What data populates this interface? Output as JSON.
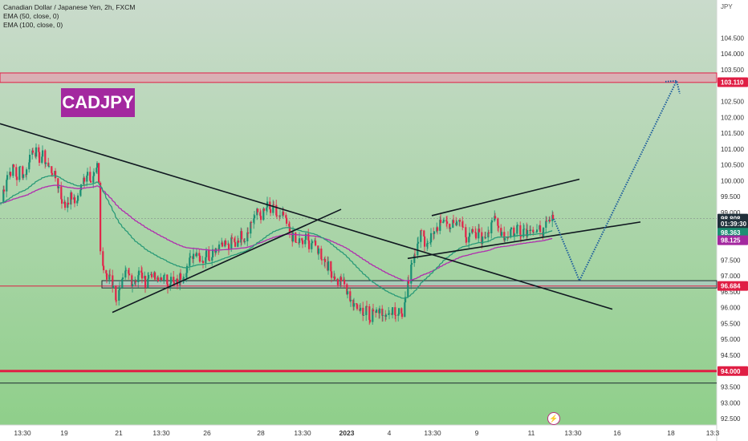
{
  "legend": {
    "title": "Canadian Dollar / Japanese Yen, 2h, FXCM",
    "ema1": "EMA (50, close, 0)",
    "ema2": "EMA (100, close, 0)"
  },
  "symbol_badge": "CADJPY",
  "flash_icon": "lightning-icon",
  "colors": {
    "bg_top": "#cadbcc",
    "bg_bottom": "#8fcf8a",
    "up_candle": "#1b8f73",
    "down_candle": "#e0264a",
    "ema50": "#2a9a78",
    "ema100": "#b02cae",
    "level_red": "#e01e44",
    "arrow": "#1c5c9c",
    "badge": "#a3289f"
  },
  "chart_data": {
    "type": "candlestick",
    "currency": "JPY",
    "ylim": [
      92.3,
      105.7
    ],
    "y_ticks": [
      "104.500",
      "104.000",
      "103.500",
      "102.500",
      "102.000",
      "101.500",
      "101.000",
      "100.500",
      "100.000",
      "99.500",
      "99.000",
      "97.500",
      "97.000",
      "96.500",
      "96.000",
      "95.500",
      "95.000",
      "94.500",
      "93.500",
      "93.000",
      "92.500"
    ],
    "x_ticks": [
      "13:30",
      "19",
      "21",
      "13:30",
      "26",
      "28",
      "13:30",
      "2023",
      "4",
      "13:30",
      "9",
      "11",
      "13:30",
      "16",
      "18",
      "13:3"
    ],
    "price_labels": [
      {
        "text": "103.110",
        "value": 103.11,
        "bg": "#e01e44"
      },
      {
        "text": "98.808",
        "value": 98.808,
        "bg": "#20303a"
      },
      {
        "text": "01:39:30",
        "value": 98.64,
        "bg": "#20303a"
      },
      {
        "text": "98.363",
        "value": 98.363,
        "bg": "#1b8f73"
      },
      {
        "text": "98.125",
        "value": 98.125,
        "bg": "#a3289f"
      },
      {
        "text": "96.684",
        "value": 96.684,
        "bg": "#e01e44"
      },
      {
        "text": "94.000",
        "value": 94.0,
        "bg": "#e01e44"
      }
    ],
    "current_price": 98.808,
    "resistance_zone": [
      103.1,
      103.4
    ],
    "support_zone": [
      96.62,
      96.85
    ],
    "lower_level": 94.0,
    "bottom_line": 93.62,
    "close_path": [
      [
        0,
        99.3
      ],
      [
        4,
        99.8
      ],
      [
        8,
        100.2
      ],
      [
        12,
        100.3
      ],
      [
        16,
        100.4
      ],
      [
        20,
        100.1
      ],
      [
        24,
        100.4
      ],
      [
        28,
        100.2
      ],
      [
        32,
        100.3
      ],
      [
        36,
        100.8
      ],
      [
        40,
        101.0
      ],
      [
        44,
        100.9
      ],
      [
        48,
        100.7
      ],
      [
        52,
        100.8
      ],
      [
        56,
        100.6
      ],
      [
        60,
        100.4
      ],
      [
        64,
        100.3
      ],
      [
        68,
        100.1
      ],
      [
        72,
        99.8
      ],
      [
        76,
        99.4
      ],
      [
        80,
        99.2
      ],
      [
        84,
        99.4
      ],
      [
        88,
        99.5
      ],
      [
        92,
        99.3
      ],
      [
        96,
        99.5
      ],
      [
        100,
        99.8
      ],
      [
        104,
        100.1
      ],
      [
        108,
        100.3
      ],
      [
        112,
        100.1
      ],
      [
        116,
        100.2
      ],
      [
        120,
        100.4
      ],
      [
        122,
        100.0
      ],
      [
        124,
        97.8
      ],
      [
        128,
        97.2
      ],
      [
        132,
        96.9
      ],
      [
        136,
        97.1
      ],
      [
        140,
        96.6
      ],
      [
        144,
        96.3
      ],
      [
        148,
        96.5
      ],
      [
        152,
        96.8
      ],
      [
        156,
        97.1
      ],
      [
        160,
        97.0
      ],
      [
        164,
        96.8
      ],
      [
        168,
        96.9
      ],
      [
        172,
        97.1
      ],
      [
        176,
        97.0
      ],
      [
        180,
        96.8
      ],
      [
        184,
        97.0
      ],
      [
        188,
        97.1
      ],
      [
        192,
        96.9
      ],
      [
        196,
        96.8
      ],
      [
        200,
        97.0
      ],
      [
        204,
        96.9
      ],
      [
        208,
        96.8
      ],
      [
        212,
        96.9
      ],
      [
        216,
        96.7
      ],
      [
        220,
        96.8
      ],
      [
        224,
        97.0
      ],
      [
        228,
        97.1
      ],
      [
        232,
        97.3
      ],
      [
        236,
        97.5
      ],
      [
        240,
        97.7
      ],
      [
        244,
        97.8
      ],
      [
        248,
        97.6
      ],
      [
        252,
        97.5
      ],
      [
        256,
        97.7
      ],
      [
        260,
        97.6
      ],
      [
        264,
        97.8
      ],
      [
        268,
        97.9
      ],
      [
        272,
        98.0
      ],
      [
        276,
        98.1
      ],
      [
        280,
        98.0
      ],
      [
        284,
        97.9
      ],
      [
        288,
        98.1
      ],
      [
        292,
        98.0
      ],
      [
        296,
        98.2
      ],
      [
        300,
        98.3
      ],
      [
        304,
        98.2
      ],
      [
        308,
        98.5
      ],
      [
        312,
        98.7
      ],
      [
        316,
        98.9
      ],
      [
        320,
        99.0
      ],
      [
        324,
        98.9
      ],
      [
        328,
        99.0
      ],
      [
        332,
        99.2
      ],
      [
        336,
        99.0
      ],
      [
        340,
        99.1
      ],
      [
        344,
        98.9
      ],
      [
        348,
        98.8
      ],
      [
        352,
        98.9
      ],
      [
        356,
        98.6
      ],
      [
        360,
        98.4
      ],
      [
        364,
        98.2
      ],
      [
        368,
        98.0
      ],
      [
        372,
        98.1
      ],
      [
        376,
        98.0
      ],
      [
        380,
        98.2
      ],
      [
        384,
        98.0
      ],
      [
        388,
        98.1
      ],
      [
        392,
        97.9
      ],
      [
        396,
        97.8
      ],
      [
        400,
        97.6
      ],
      [
        404,
        97.5
      ],
      [
        408,
        97.3
      ],
      [
        412,
        97.1
      ],
      [
        416,
        97.0
      ],
      [
        420,
        96.8
      ],
      [
        424,
        96.9
      ],
      [
        428,
        96.7
      ],
      [
        432,
        96.4
      ],
      [
        436,
        96.3
      ],
      [
        440,
        96.0
      ],
      [
        444,
        96.1
      ],
      [
        448,
        96.0
      ],
      [
        452,
        95.8
      ],
      [
        456,
        96.1
      ],
      [
        460,
        95.7
      ],
      [
        464,
        95.9
      ],
      [
        468,
        95.8
      ],
      [
        472,
        96.0
      ],
      [
        476,
        95.8
      ],
      [
        480,
        95.9
      ],
      [
        484,
        95.7
      ],
      [
        488,
        96.0
      ],
      [
        492,
        95.8
      ],
      [
        496,
        95.9
      ],
      [
        500,
        95.8
      ],
      [
        504,
        96.2
      ],
      [
        508,
        96.8
      ],
      [
        512,
        97.3
      ],
      [
        516,
        97.8
      ],
      [
        520,
        98.2
      ],
      [
        524,
        98.4
      ],
      [
        528,
        98.0
      ],
      [
        532,
        98.1
      ],
      [
        536,
        98.2
      ],
      [
        540,
        98.3
      ],
      [
        544,
        98.5
      ],
      [
        548,
        98.8
      ],
      [
        552,
        98.6
      ],
      [
        556,
        98.7
      ],
      [
        560,
        98.5
      ],
      [
        564,
        98.8
      ],
      [
        568,
        98.6
      ],
      [
        572,
        98.7
      ],
      [
        576,
        98.5
      ],
      [
        580,
        98.2
      ],
      [
        584,
        98.4
      ],
      [
        588,
        98.3
      ],
      [
        592,
        98.2
      ],
      [
        596,
        98.4
      ],
      [
        600,
        98.1
      ],
      [
        604,
        98.3
      ],
      [
        608,
        98.5
      ],
      [
        612,
        98.8
      ],
      [
        616,
        98.7
      ],
      [
        620,
        98.5
      ],
      [
        624,
        98.4
      ],
      [
        628,
        98.2
      ],
      [
        632,
        98.3
      ],
      [
        636,
        98.5
      ],
      [
        640,
        98.3
      ],
      [
        644,
        98.6
      ],
      [
        648,
        98.4
      ],
      [
        652,
        98.5
      ],
      [
        656,
        98.4
      ],
      [
        660,
        98.6
      ],
      [
        664,
        98.4
      ],
      [
        668,
        98.3
      ],
      [
        672,
        98.5
      ],
      [
        676,
        98.4
      ],
      [
        680,
        98.6
      ],
      [
        684,
        98.7
      ],
      [
        688,
        98.8
      ]
    ]
  }
}
